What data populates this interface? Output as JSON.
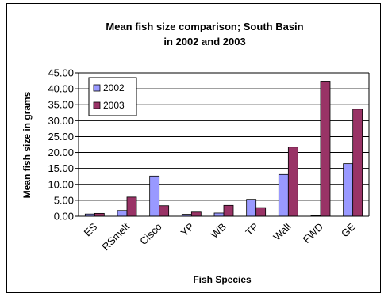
{
  "chart_data": {
    "type": "bar",
    "title_line1": "Mean fish size comparison; South Basin",
    "title_line2": "in 2002 and 2003",
    "xlabel": "Fish Species",
    "ylabel": "Mean fish size in grams",
    "categories": [
      "ES",
      "RSmelt",
      "Cisco",
      "YP",
      "WB",
      "TP",
      "Wall",
      "FWD",
      "GE"
    ],
    "series": [
      {
        "name": "2002",
        "color": "#9999FF",
        "values": [
          0.7,
          1.8,
          12.6,
          0.6,
          1.0,
          5.3,
          13.1,
          0.2,
          16.5
        ]
      },
      {
        "name": "2003",
        "color": "#993366",
        "values": [
          0.9,
          6.0,
          3.3,
          1.3,
          3.4,
          2.7,
          21.7,
          42.4,
          33.6
        ]
      }
    ],
    "ylim": [
      0,
      45
    ],
    "ytick_step": 5,
    "ytick_labels": [
      "0.00",
      "5.00",
      "10.00",
      "15.00",
      "20.00",
      "25.00",
      "30.00",
      "35.00",
      "40.00",
      "45.00"
    ],
    "grid": true,
    "legend_position": "top-left"
  }
}
